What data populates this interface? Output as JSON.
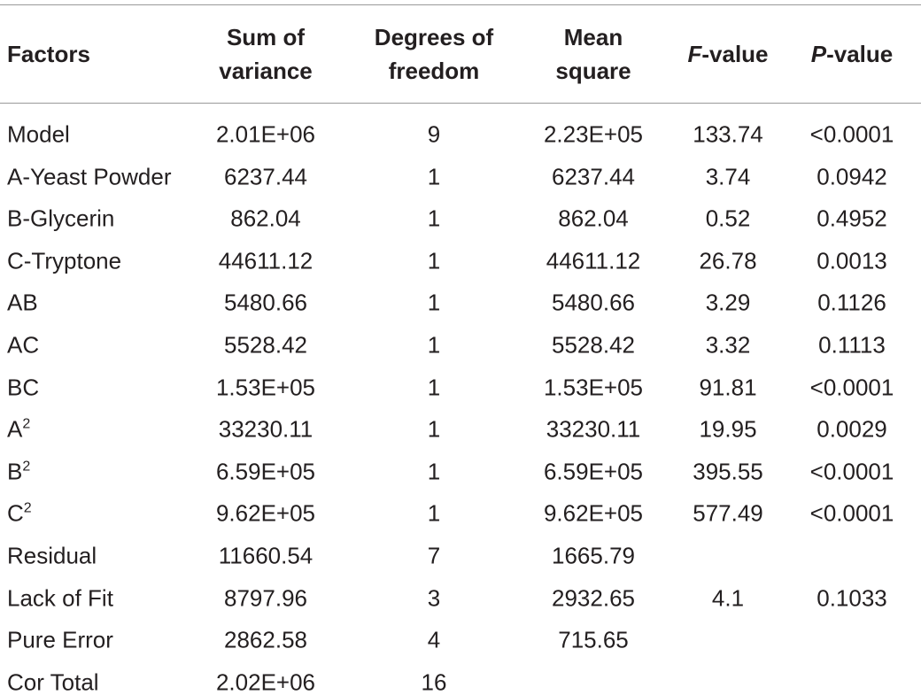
{
  "table": {
    "header": [
      "Factors",
      [
        "Sum of",
        "variance"
      ],
      [
        "Degrees of",
        "freedom"
      ],
      [
        "Mean",
        "square"
      ],
      {
        "italic": "F",
        "text": "-value"
      },
      {
        "italic": "P",
        "text": "-value"
      }
    ],
    "rows": [
      [
        "Model",
        "2.01E+06",
        "9",
        "2.23E+05",
        "133.74",
        "<0.0001"
      ],
      [
        "A-Yeast Powder",
        "6237.44",
        "1",
        "6237.44",
        "3.74",
        "0.0942"
      ],
      [
        "B-Glycerin",
        "862.04",
        "1",
        "862.04",
        "0.52",
        "0.4952"
      ],
      [
        "C-Tryptone",
        "44611.12",
        "1",
        "44611.12",
        "26.78",
        "0.0013"
      ],
      [
        "AB",
        "5480.66",
        "1",
        "5480.66",
        "3.29",
        "0.1126"
      ],
      [
        "AC",
        "5528.42",
        "1",
        "5528.42",
        "3.32",
        "0.1113"
      ],
      [
        "BC",
        "1.53E+05",
        "1",
        "1.53E+05",
        "91.81",
        "<0.0001"
      ],
      [
        {
          "text": "A",
          "sup": "2"
        },
        "33230.11",
        "1",
        "33230.11",
        "19.95",
        "0.0029"
      ],
      [
        {
          "text": "B",
          "sup": "2"
        },
        "6.59E+05",
        "1",
        "6.59E+05",
        "395.55",
        "<0.0001"
      ],
      [
        {
          "text": "C",
          "sup": "2"
        },
        "9.62E+05",
        "1",
        "9.62E+05",
        "577.49",
        "<0.0001"
      ],
      [
        "Residual",
        "11660.54",
        "7",
        "1665.79"
      ],
      [
        "Lack of Fit",
        "8797.96",
        "3",
        "2932.65",
        "4.1",
        "0.1033"
      ],
      [
        "Pure Error",
        "2862.58",
        "4",
        "715.65"
      ],
      [
        "Cor Total",
        "2.02E+06",
        "16"
      ]
    ]
  }
}
